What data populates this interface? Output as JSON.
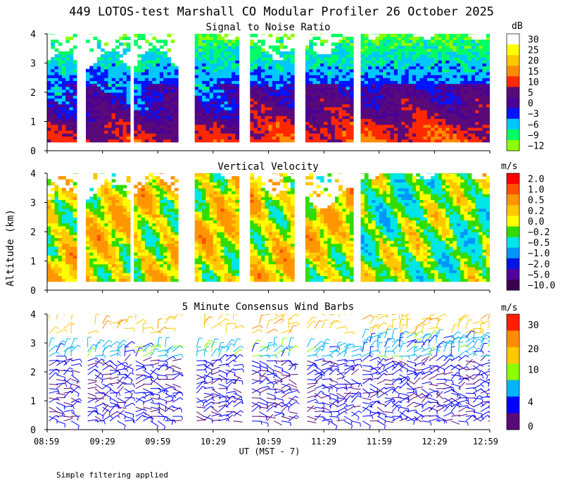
{
  "chart_data": [
    {
      "type": "heatmap",
      "title": "Signal to Noise Ratio",
      "ylabel": "Altitude (km)",
      "ylim": [
        0,
        4
      ],
      "y_ticks": [
        "0",
        "1",
        "2",
        "3",
        "4"
      ],
      "units": "dB",
      "colorbar_labels": [
        "30",
        "25",
        "20",
        "15",
        "10",
        "5",
        "0",
        "−3",
        "−6",
        "−9",
        "−12"
      ],
      "colors": [
        "#ffffff",
        "#ffff00",
        "#ffc800",
        "#ff8c00",
        "#ff2800",
        "#5a0a78",
        "#4b0096",
        "#0014ff",
        "#00c8ff",
        "#00ff64",
        "#8cff00"
      ]
    },
    {
      "type": "heatmap",
      "title": "Vertical Velocity",
      "ylabel": "Altitude (km)",
      "ylim": [
        0,
        4
      ],
      "y_ticks": [
        "0",
        "1",
        "2",
        "3",
        "4"
      ],
      "units": "m/s",
      "colorbar_labels": [
        "2.0",
        "1.0",
        "0.5",
        "0.2",
        "0.0",
        "−0.2",
        "−0.5",
        "−1.0",
        "−2.0",
        "−5.0",
        "−10.0"
      ],
      "colors": [
        "#ff0000",
        "#ff5000",
        "#ff9600",
        "#ffc800",
        "#ffff00",
        "#32dc00",
        "#00e6e6",
        "#0096ff",
        "#0014e6",
        "#5000a0",
        "#3c0050"
      ]
    },
    {
      "type": "scatter",
      "title": "5 Minute Consensus Wind Barbs",
      "ylabel": "Altitude (km)",
      "ylim": [
        0,
        4
      ],
      "y_ticks": [
        "0",
        "1",
        "2",
        "3",
        "4"
      ],
      "units": "m/s",
      "colorbar_labels": [
        "30",
        "20",
        "10",
        "4",
        "0"
      ],
      "colors": [
        "#ff1e00",
        "#ff8c00",
        "#ffc800",
        "#8cff00",
        "#00b4ff",
        "#0000ff",
        "#5a0a78"
      ]
    }
  ],
  "header": {
    "title": "449 LOTOS-test Marshall CO Modular Profiler 26 October 2025",
    "y_axis_label": "Altitude (km)"
  },
  "x_axis": {
    "ticks": [
      "08:59",
      "09:29",
      "09:59",
      "10:29",
      "10:59",
      "11:29",
      "11:59",
      "12:29",
      "12:59"
    ],
    "label": "UT  (MST - 7)"
  },
  "data_blocks_minutes": [
    [
      0,
      16
    ],
    [
      21,
      45
    ],
    [
      47,
      71
    ],
    [
      80,
      104
    ],
    [
      110,
      134
    ],
    [
      140,
      166
    ],
    [
      170,
      240
    ]
  ],
  "footer": {
    "note": "Simple filtering applied"
  }
}
